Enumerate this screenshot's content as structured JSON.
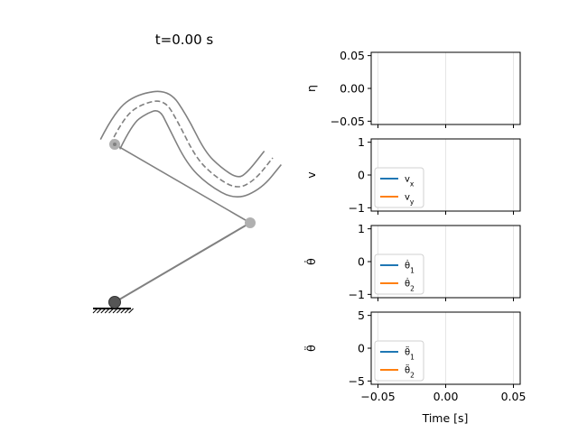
{
  "title": "t=0.00 s",
  "xlabel": "Time [s]",
  "colors": {
    "series1": "#1f77b4",
    "series2": "#ff7f0e",
    "arm": "#808080",
    "joint": "#b0b0b0",
    "base": "#555555"
  },
  "mechanism": {
    "type": "two-link arm with path-following end effector",
    "base": [
      0,
      0
    ],
    "joint": [
      1.5,
      0.88
    ],
    "end_effector": [
      0.0,
      1.75
    ],
    "path_center": [
      [
        -0.05,
        1.75
      ],
      [
        0.1,
        2.05
      ],
      [
        0.3,
        2.2
      ],
      [
        0.55,
        2.25
      ],
      [
        0.7,
        2.0
      ],
      [
        0.9,
        1.6
      ],
      [
        1.1,
        1.4
      ],
      [
        1.35,
        1.25
      ],
      [
        1.55,
        1.35
      ],
      [
        1.75,
        1.6
      ]
    ],
    "path_offset": 0.12
  },
  "chart_data": [
    {
      "type": "line",
      "ylabel": "η",
      "xlim": [
        -0.055,
        0.055
      ],
      "ylim": [
        -0.055,
        0.055
      ],
      "xticks": [
        -0.05,
        0.0,
        0.05
      ],
      "yticks": [
        -0.05,
        0.0,
        0.05
      ],
      "yticklabels": [
        "−0.05",
        "0.00",
        "0.05"
      ],
      "series": [],
      "legend": null
    },
    {
      "type": "line",
      "ylabel": "v",
      "xlim": [
        -0.055,
        0.055
      ],
      "ylim": [
        -1.1,
        1.1
      ],
      "xticks": [
        -0.05,
        0.0,
        0.05
      ],
      "yticks": [
        -1,
        0,
        1
      ],
      "yticklabels": [
        "−1",
        "0",
        "1"
      ],
      "series": [
        {
          "name": "v_x",
          "values": []
        },
        {
          "name": "v_y",
          "values": []
        }
      ],
      "legend": "lower-left"
    },
    {
      "type": "line",
      "ylabel": "θ̇",
      "xlim": [
        -0.055,
        0.055
      ],
      "ylim": [
        -1.1,
        1.1
      ],
      "xticks": [
        -0.05,
        0.0,
        0.05
      ],
      "yticks": [
        -1,
        0,
        1
      ],
      "yticklabels": [
        "−1",
        "0",
        "1"
      ],
      "series": [
        {
          "name": "θ̇1",
          "values": []
        },
        {
          "name": "θ̇2",
          "values": []
        }
      ],
      "legend": "lower-left"
    },
    {
      "type": "line",
      "ylabel": "θ̈",
      "xlim": [
        -0.055,
        0.055
      ],
      "ylim": [
        -5.5,
        5.5
      ],
      "xticks": [
        -0.05,
        0.0,
        0.05
      ],
      "yticks": [
        -5,
        0,
        5
      ],
      "yticklabels": [
        "−5",
        "0",
        "5"
      ],
      "xticklabels": [
        "−0.05",
        "0.00",
        "0.05"
      ],
      "series": [
        {
          "name": "θ̈1",
          "values": []
        },
        {
          "name": "θ̈2",
          "values": []
        }
      ],
      "legend": "lower-left"
    }
  ]
}
